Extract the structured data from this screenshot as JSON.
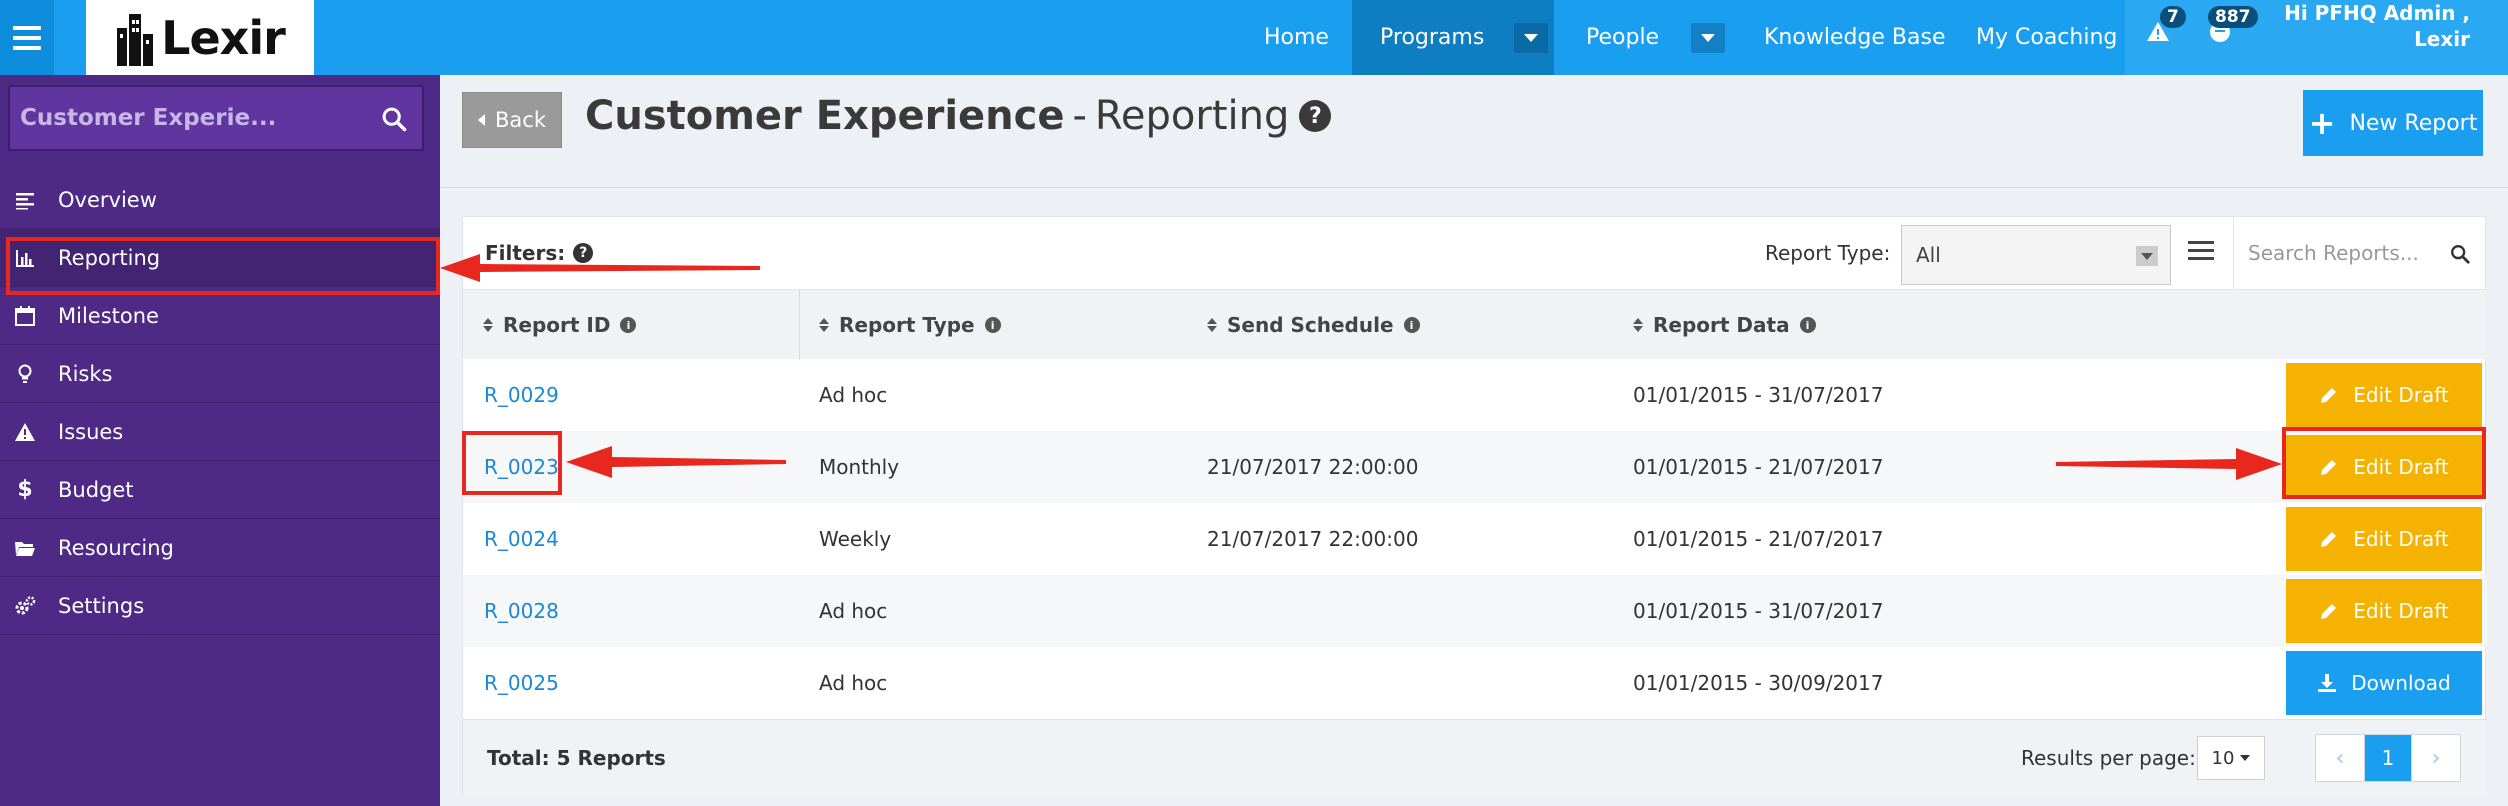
{
  "topbar": {
    "logo_text": "Lexir",
    "nav": [
      {
        "label": "Home"
      },
      {
        "label": "Programs"
      },
      {
        "label": "People"
      },
      {
        "label": "Knowledge Base"
      },
      {
        "label": "My Coaching"
      }
    ],
    "alerts_count": "7",
    "messages_count": "887",
    "user_greeting_line1": "Hi PFHQ Admin ,",
    "user_greeting_line2": "Lexir"
  },
  "sidebar": {
    "search_value": "Customer Experie...",
    "items": [
      {
        "label": "Overview",
        "icon": "list-icon"
      },
      {
        "label": "Reporting",
        "icon": "bar-chart-icon"
      },
      {
        "label": "Milestone",
        "icon": "calendar-icon"
      },
      {
        "label": "Risks",
        "icon": "lightbulb-icon"
      },
      {
        "label": "Issues",
        "icon": "warning-icon"
      },
      {
        "label": "Budget",
        "icon": "dollar-icon"
      },
      {
        "label": "Resourcing",
        "icon": "folder-open-icon"
      },
      {
        "label": "Settings",
        "icon": "gears-icon"
      }
    ],
    "active_index": 1
  },
  "page": {
    "back_label": "Back",
    "title_bold": "Customer Experience",
    "title_sep": "-",
    "title_rest": "Reporting",
    "new_report_label": "New Report"
  },
  "filters": {
    "label": "Filters:",
    "report_type_label": "Report Type:",
    "report_type_value": "All",
    "search_placeholder": "Search Reports..."
  },
  "table": {
    "headers": [
      "Report ID",
      "Report Type",
      "Send Schedule",
      "Report Data"
    ],
    "rows": [
      {
        "id": "R_0029",
        "type": "Ad hoc",
        "schedule": "",
        "data": "01/01/2015 - 31/07/2017",
        "action": "Edit Draft"
      },
      {
        "id": "R_0023",
        "type": "Monthly",
        "schedule": "21/07/2017 22:00:00",
        "data": "01/01/2015 - 21/07/2017",
        "action": "Edit Draft"
      },
      {
        "id": "R_0024",
        "type": "Weekly",
        "schedule": "21/07/2017 22:00:00",
        "data": "01/01/2015 - 21/07/2017",
        "action": "Edit Draft"
      },
      {
        "id": "R_0028",
        "type": "Ad hoc",
        "schedule": "",
        "data": "01/01/2015 - 31/07/2017",
        "action": "Edit Draft"
      },
      {
        "id": "R_0025",
        "type": "Ad hoc",
        "schedule": "",
        "data": "01/01/2015 - 30/09/2017",
        "action": "Download"
      }
    ]
  },
  "footer": {
    "total": "Total: 5 Reports",
    "results_per_page_label": "Results per page:",
    "results_per_page_value": "10",
    "current_page": "1"
  },
  "colors": {
    "primary": "#1a9ff0",
    "sidebar": "#4e2a86",
    "edit_draft": "#f5b200",
    "annotation": "#e8281e"
  }
}
